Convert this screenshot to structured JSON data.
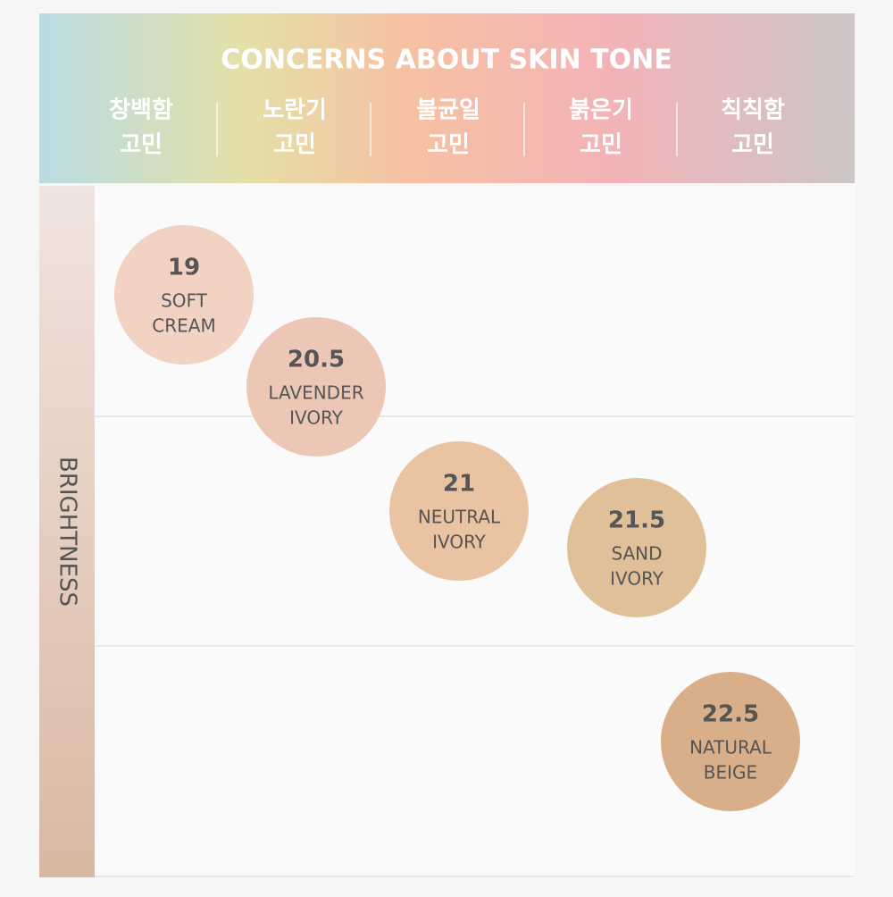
{
  "header": {
    "title": "CONCERNS ABOUT SKIN TONE",
    "concerns": [
      [
        "창백함",
        "고민"
      ],
      [
        "노란기",
        "고민"
      ],
      [
        "불균일",
        "고민"
      ],
      [
        "붉은기",
        "고민"
      ],
      [
        "칙칙함",
        "고민"
      ]
    ]
  },
  "axis_label": "BRIGHTNESS",
  "shades": [
    {
      "number": "19",
      "name": [
        "SOFT",
        "CREAM"
      ]
    },
    {
      "number": "20.5",
      "name": [
        "LAVENDER",
        "IVORY"
      ]
    },
    {
      "number": "21",
      "name": [
        "NEUTRAL",
        "IVORY"
      ]
    },
    {
      "number": "21.5",
      "name": [
        "SAND",
        "IVORY"
      ]
    },
    {
      "number": "22.5",
      "name": [
        "NATURAL",
        "BEIGE"
      ]
    }
  ]
}
